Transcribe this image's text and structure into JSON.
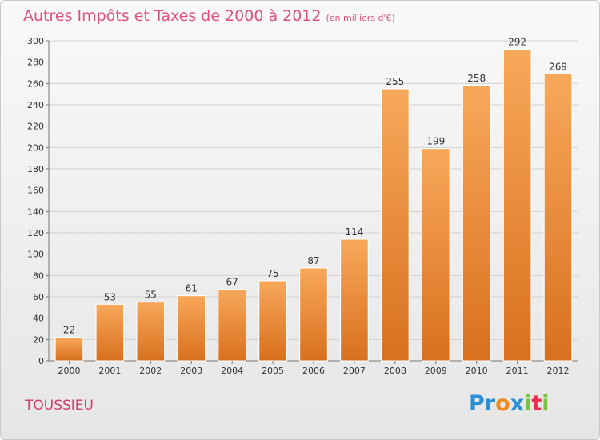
{
  "title": "Autres Impôts et Taxes de 2000 à 2012",
  "title_unit": "(en milliers d'€)",
  "place": "TOUSSIEU",
  "logo": {
    "text": "Proxiti",
    "letters": [
      "P",
      "r",
      "o",
      "x",
      "i",
      "t",
      "i"
    ],
    "colors": [
      "#2a8fd6",
      "#2a8fd6",
      "#f08a1c",
      "#2a8fd6",
      "#7cc242",
      "#e8304f",
      "#7cc242"
    ]
  },
  "chart_data": {
    "type": "bar",
    "title": "Autres Impôts et Taxes de 2000 à 2012",
    "subtitle": "(en milliers d'€)",
    "categories": [
      "2000",
      "2001",
      "2002",
      "2003",
      "2004",
      "2005",
      "2006",
      "2007",
      "2008",
      "2009",
      "2010",
      "2011",
      "2012"
    ],
    "values": [
      22,
      53,
      55,
      61,
      67,
      75,
      87,
      114,
      255,
      199,
      258,
      292,
      269
    ],
    "ylim": [
      0,
      300
    ],
    "yticks": [
      0,
      20,
      40,
      60,
      80,
      100,
      120,
      140,
      160,
      180,
      200,
      220,
      240,
      260,
      280,
      300
    ],
    "grid": true,
    "bar_color_top": "#f8a85a",
    "bar_color_bottom": "#d8701e"
  }
}
